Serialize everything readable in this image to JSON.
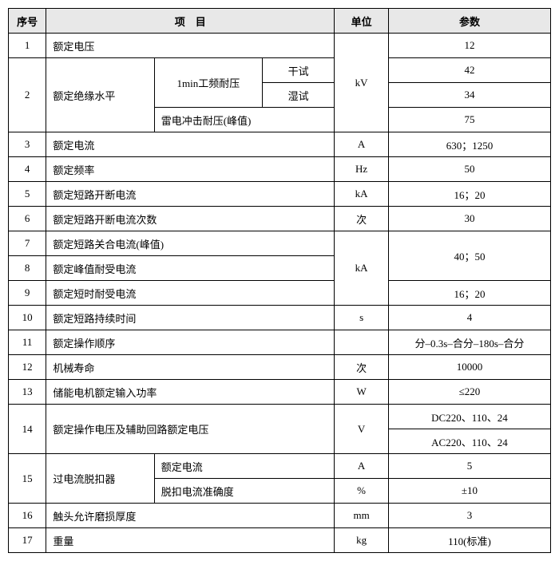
{
  "header": {
    "num": "序号",
    "item": "项　目",
    "unit": "单位",
    "param": "参数"
  },
  "r1": {
    "n": "1",
    "item": "额定电压",
    "param": "12"
  },
  "r2": {
    "n": "2",
    "item": "额定绝缘水平",
    "sub1": "1min工频耐压",
    "dry": "干试",
    "wet": "湿试",
    "sub2": "雷电冲击耐压(峰值)",
    "unit": "kV",
    "p_dry": "42",
    "p_wet": "34",
    "p_lei": "75"
  },
  "r3": {
    "n": "3",
    "item": "额定电流",
    "unit": "A",
    "param": "630；1250"
  },
  "r4": {
    "n": "4",
    "item": "额定频率",
    "unit": "Hz",
    "param": "50"
  },
  "r5": {
    "n": "5",
    "item": "额定短路开断电流",
    "unit": "kA",
    "param": "16；20"
  },
  "r6": {
    "n": "6",
    "item": "额定短路开断电流次数",
    "unit": "次",
    "param": "30"
  },
  "r7": {
    "n": "7",
    "item": "额定短路关合电流(峰值)",
    "unit": "kA",
    "param": "40；50"
  },
  "r8": {
    "n": "8",
    "item": "额定峰值耐受电流"
  },
  "r9": {
    "n": "9",
    "item": "额定短时耐受电流",
    "param": "16；20"
  },
  "r10": {
    "n": "10",
    "item": "额定短路持续时间",
    "unit": "s",
    "param": "4"
  },
  "r11": {
    "n": "11",
    "item": "额定操作顺序",
    "unit": "",
    "param": "分–0.3s–合分–180s–合分"
  },
  "r12": {
    "n": "12",
    "item": "机械寿命",
    "unit": "次",
    "param": "10000"
  },
  "r13": {
    "n": "13",
    "item": "储能电机额定输入功率",
    "unit": "W",
    "param": "≤220"
  },
  "r14": {
    "n": "14",
    "item": "额定操作电压及辅助回路额定电压",
    "unit": "V",
    "p1": "DC220、110、24",
    "p2": "AC220、110、24"
  },
  "r15": {
    "n": "15",
    "item": "过电流脱扣器",
    "sub1": "额定电流",
    "sub2": "脱扣电流准确度",
    "u1": "A",
    "u2": "%",
    "p1": "5",
    "p2": "±10"
  },
  "r16": {
    "n": "16",
    "item": "触头允许磨损厚度",
    "unit": "mm",
    "param": "3"
  },
  "r17": {
    "n": "17",
    "item": "重量",
    "unit": "kg",
    "param": "110(标准)"
  }
}
